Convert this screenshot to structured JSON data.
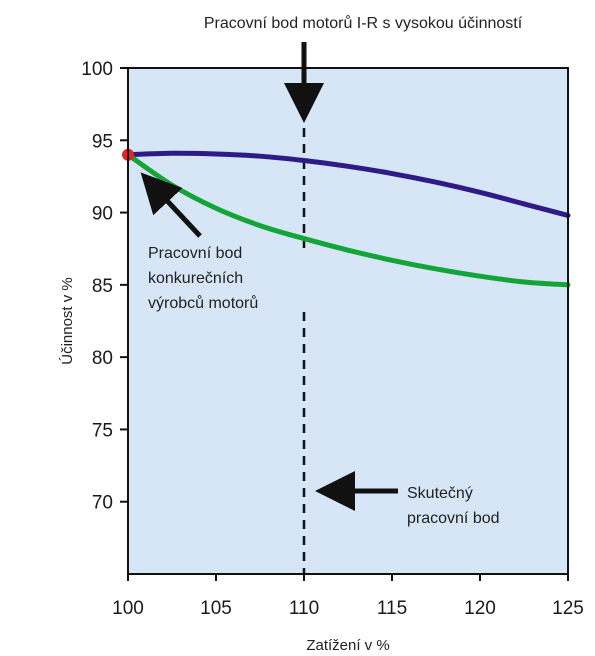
{
  "chart_data": {
    "type": "line",
    "title": "Pracovní bod motorů I-R s vysokou účinností",
    "xlabel": "Zatížení v %",
    "ylabel": "Účinnost v %",
    "xlim": [
      100,
      125
    ],
    "ylim": [
      65,
      100
    ],
    "x_ticks": [
      100,
      105,
      110,
      115,
      120,
      125
    ],
    "y_ticks": [
      70,
      75,
      80,
      85,
      90,
      95,
      100
    ],
    "grid": false,
    "background_color": "#d6e6f6",
    "series": [
      {
        "color": "#2e1b87",
        "x": [
          100,
          102.5,
          105,
          107.5,
          110,
          112.5,
          115,
          117.5,
          120,
          122.5,
          125
        ],
        "y": [
          94.0,
          94.1,
          94.05,
          93.9,
          93.6,
          93.2,
          92.7,
          92.1,
          91.4,
          90.6,
          89.8
        ]
      },
      {
        "color": "#13a538",
        "x": [
          100,
          102.5,
          105,
          107.5,
          110,
          112.5,
          115,
          117.5,
          120,
          122.5,
          125
        ],
        "y": [
          94.0,
          91.9,
          90.3,
          89.1,
          88.2,
          87.4,
          86.7,
          86.1,
          85.6,
          85.2,
          85.0
        ]
      }
    ],
    "marker": {
      "x": 100,
      "y": 94,
      "color": "#e3262a"
    },
    "reference_line": {
      "x": 110,
      "style": "dashed"
    },
    "annotations": {
      "competitor_lines": [
        "Pracovní bod",
        "konkurečních",
        "výrobců motorů"
      ],
      "actual_lines": [
        "Skutečný",
        "pracovní bod"
      ]
    }
  }
}
